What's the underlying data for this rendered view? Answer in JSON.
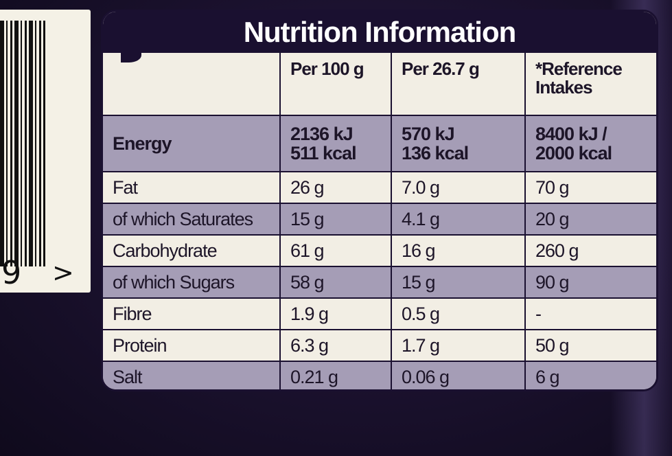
{
  "barcode": {
    "digit": "9",
    "arrow": ">"
  },
  "panel": {
    "title": "Nutrition Information",
    "headers": [
      "",
      "Per 100 g",
      "Per 26.7 g",
      "*Reference Intakes"
    ],
    "energy": {
      "label": "Energy",
      "per100_kj": "2136 kJ",
      "per100_kcal": "511 kcal",
      "perportion_kj": "570 kJ",
      "perportion_kcal": "136 kcal",
      "ri_kj": "8400 kJ /",
      "ri_kcal": "2000 kcal"
    },
    "rows": [
      {
        "label": "Fat",
        "per100": "26 g",
        "perportion": "7.0 g",
        "ri": "70 g"
      },
      {
        "label": "of which Saturates",
        "per100": "15 g",
        "perportion": "4.1 g",
        "ri": "20 g"
      },
      {
        "label": "Carbohydrate",
        "per100": "61 g",
        "perportion": "16 g",
        "ri": "260 g"
      },
      {
        "label": "of which Sugars",
        "per100": "58 g",
        "perportion": "15 g",
        "ri": "90 g"
      },
      {
        "label": "Fibre",
        "per100": "1.9 g",
        "perportion": "0.5 g",
        "ri": "-"
      },
      {
        "label": "Protein",
        "per100": "6.3 g",
        "perportion": "1.7 g",
        "ri": "50 g"
      },
      {
        "label": "Salt",
        "per100": "0.21 g",
        "perportion": "0.06 g",
        "ri": "6 g"
      }
    ]
  },
  "colors": {
    "wrapper_purple": "#1c1230",
    "label_cream": "#f2eee4",
    "row_shade": "#a59db6",
    "title_bar": "#1a1030"
  }
}
